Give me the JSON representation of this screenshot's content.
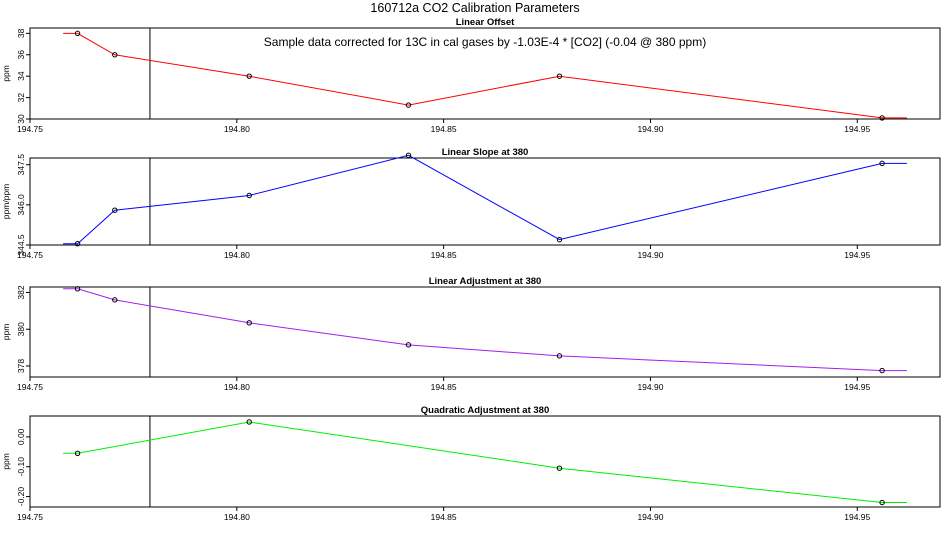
{
  "figure_title": "160712a   CO2 Calibration Parameters",
  "chart_data": [
    {
      "type": "line",
      "title": "Linear Offset",
      "xlabel": "",
      "ylabel": "ppm",
      "color": "#ff0000",
      "annotation": "Sample data corrected for 13C in cal gases by -1.03E-4 * [CO2] (-0.04 @ 380 ppm)",
      "xlim": [
        194.75,
        194.97
      ],
      "ylim": [
        30,
        38.5
      ],
      "xticks": [
        {
          "v": 194.75,
          "label": "194.75"
        },
        {
          "v": 194.8,
          "label": "194.80"
        },
        {
          "v": 194.85,
          "label": "194.85"
        },
        {
          "v": 194.9,
          "label": "194.90"
        },
        {
          "v": 194.95,
          "label": "194.95"
        }
      ],
      "yticks": [
        {
          "v": 30,
          "label": "30"
        },
        {
          "v": 32,
          "label": "32"
        },
        {
          "v": 34,
          "label": "34"
        },
        {
          "v": 36,
          "label": "36"
        },
        {
          "v": 38,
          "label": "38"
        }
      ],
      "vline_x": 194.779,
      "line_start_x": 194.758,
      "line_end_x": 194.962,
      "points": [
        {
          "x": 194.7615,
          "y": 38.0
        },
        {
          "x": 194.7705,
          "y": 36.0
        },
        {
          "x": 194.803,
          "y": 34.0
        },
        {
          "x": 194.8415,
          "y": 31.3
        },
        {
          "x": 194.878,
          "y": 34.0
        },
        {
          "x": 194.956,
          "y": 30.1
        }
      ]
    },
    {
      "type": "line",
      "title": "Linear Slope at 380",
      "xlabel": "",
      "ylabel": "ppm/ppm",
      "color": "#0000ff",
      "xlim": [
        194.75,
        194.97
      ],
      "ylim": [
        344.5,
        347.75
      ],
      "xticks": [
        {
          "v": 194.75,
          "label": "194.75"
        },
        {
          "v": 194.8,
          "label": "194.80"
        },
        {
          "v": 194.85,
          "label": "194.85"
        },
        {
          "v": 194.9,
          "label": "194.90"
        },
        {
          "v": 194.95,
          "label": "194.95"
        }
      ],
      "yticks": [
        {
          "v": 344.5,
          "label": "344.5"
        },
        {
          "v": 346.0,
          "label": "346.0"
        },
        {
          "v": 347.5,
          "label": "347.5"
        }
      ],
      "vline_x": 194.779,
      "line_start_x": 194.758,
      "line_end_x": 194.962,
      "points": [
        {
          "x": 194.7615,
          "y": 344.55
        },
        {
          "x": 194.7705,
          "y": 345.8
        },
        {
          "x": 194.803,
          "y": 346.35
        },
        {
          "x": 194.8415,
          "y": 347.85
        },
        {
          "x": 194.878,
          "y": 344.7
        },
        {
          "x": 194.956,
          "y": 347.55
        }
      ]
    },
    {
      "type": "line",
      "title": "Linear Adjustment at 380",
      "xlabel": "",
      "ylabel": "ppm",
      "color": "#a020f0",
      "xlim": [
        194.75,
        194.97
      ],
      "ylim": [
        377.4,
        382.3
      ],
      "xticks": [
        {
          "v": 194.75,
          "label": "194.75"
        },
        {
          "v": 194.8,
          "label": "194.80"
        },
        {
          "v": 194.85,
          "label": "194.85"
        },
        {
          "v": 194.9,
          "label": "194.90"
        },
        {
          "v": 194.95,
          "label": "194.95"
        }
      ],
      "yticks": [
        {
          "v": 378,
          "label": "378"
        },
        {
          "v": 380,
          "label": "380"
        },
        {
          "v": 382,
          "label": "382"
        }
      ],
      "vline_x": 194.779,
      "line_start_x": 194.758,
      "line_end_x": 194.962,
      "points": [
        {
          "x": 194.7615,
          "y": 382.2
        },
        {
          "x": 194.7705,
          "y": 381.6
        },
        {
          "x": 194.803,
          "y": 380.35
        },
        {
          "x": 194.8415,
          "y": 379.15
        },
        {
          "x": 194.878,
          "y": 378.55
        },
        {
          "x": 194.956,
          "y": 377.75
        }
      ]
    },
    {
      "type": "line",
      "title": "Quadratic Adjustment at 380",
      "xlabel": "",
      "ylabel": "ppm",
      "color": "#00ee00",
      "xlim": [
        194.75,
        194.97
      ],
      "ylim": [
        -0.235,
        0.07
      ],
      "xticks": [
        {
          "v": 194.75,
          "label": "194.75"
        },
        {
          "v": 194.8,
          "label": "194.80"
        },
        {
          "v": 194.85,
          "label": "194.85"
        },
        {
          "v": 194.9,
          "label": "194.90"
        },
        {
          "v": 194.95,
          "label": "194.95"
        }
      ],
      "yticks": [
        {
          "v": -0.2,
          "label": "-0.20"
        },
        {
          "v": -0.1,
          "label": "-0.10"
        },
        {
          "v": 0.0,
          "label": "0.00"
        }
      ],
      "vline_x": 194.779,
      "line_start_x": 194.758,
      "line_end_x": 194.962,
      "points": [
        {
          "x": 194.7615,
          "y": -0.055
        },
        {
          "x": 194.803,
          "y": 0.05
        },
        {
          "x": 194.878,
          "y": -0.105
        },
        {
          "x": 194.956,
          "y": -0.22
        }
      ]
    }
  ]
}
